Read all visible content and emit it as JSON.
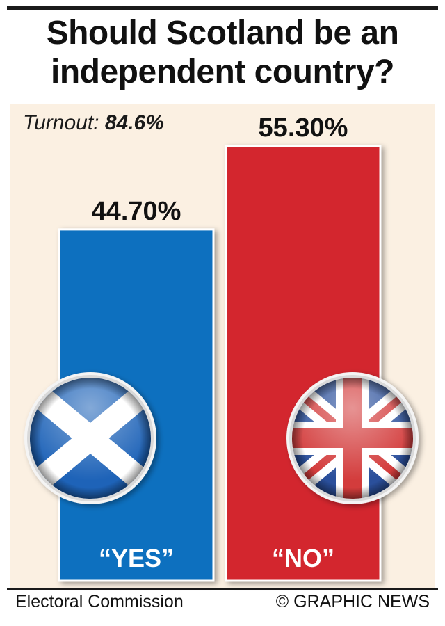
{
  "title_line1": "Should Scotland be an",
  "title_line2": "independent country?",
  "turnout": {
    "label": "Turnout:",
    "value": "84.6%"
  },
  "chart_data": {
    "type": "bar",
    "title": "Should Scotland be an independent country?",
    "categories": [
      "“YES”",
      "“NO”"
    ],
    "values": [
      44.7,
      55.3
    ],
    "value_labels": [
      "44.70%",
      "55.30%"
    ],
    "colors": [
      "#0b6fbf",
      "#d3282f"
    ],
    "flag_icons": [
      "scottish-saltire-icon",
      "union-jack-icon"
    ],
    "xlabel": "",
    "ylabel": "",
    "grid": false
  },
  "source": "Electoral Commission",
  "credit": "© GRAPHIC NEWS"
}
